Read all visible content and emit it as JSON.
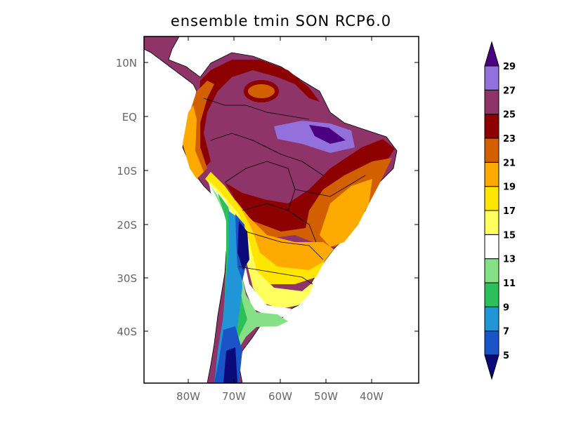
{
  "title": "ensemble tmin SON RCP6.0",
  "map": {
    "lat_labels": [
      "10N",
      "EQ",
      "10S",
      "20S",
      "30S",
      "40S"
    ],
    "lon_labels": [
      "80W",
      "70W",
      "60W",
      "50W",
      "40W"
    ],
    "lon_range": [
      -90,
      -30
    ],
    "lat_range": [
      -50,
      15
    ]
  },
  "colorbar": {
    "labels": [
      "5",
      "7",
      "9",
      "11",
      "13",
      "15",
      "17",
      "19",
      "21",
      "23",
      "25",
      "27",
      "29"
    ],
    "colors": [
      "#0a0a7a",
      "#1a55c8",
      "#2196d6",
      "#2cbf5a",
      "#86e086",
      "#ffffff",
      "#ffff5e",
      "#ffe600",
      "#ffaa00",
      "#d26000",
      "#8c0000",
      "#8e3468",
      "#9370db",
      "#4b0082"
    ]
  }
}
